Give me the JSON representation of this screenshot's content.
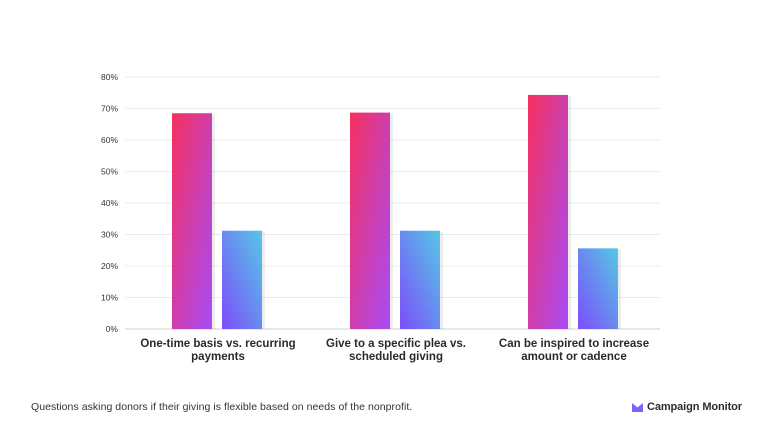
{
  "chart_data": {
    "type": "bar",
    "categories": [
      [
        "One-time basis vs. recurring",
        "payments"
      ],
      [
        "Give to a specific plea vs.",
        "scheduled giving"
      ],
      [
        "Can be inspired to increase",
        "amount or cadence"
      ]
    ],
    "series": [
      {
        "values": [
          68.5,
          68.7,
          74.3
        ],
        "color_top": "#f5315e",
        "color_bottom": "#a84bf7"
      },
      {
        "values": [
          31.2,
          31.2,
          25.6
        ],
        "color_top": "#56c7e6",
        "color_bottom": "#7c4dfa"
      }
    ],
    "y_ticks": [
      "0%",
      "10%",
      "20%",
      "30%",
      "40%",
      "50%",
      "60%",
      "70%",
      "80%"
    ],
    "ylim": [
      0,
      80
    ],
    "grid": true
  },
  "footnote": "Questions asking donors if their giving is flexible based on needs of the nonprofit.",
  "brand": {
    "name": "Campaign Monitor",
    "icon": "envelope-m-icon",
    "color": "#7b61ff"
  }
}
